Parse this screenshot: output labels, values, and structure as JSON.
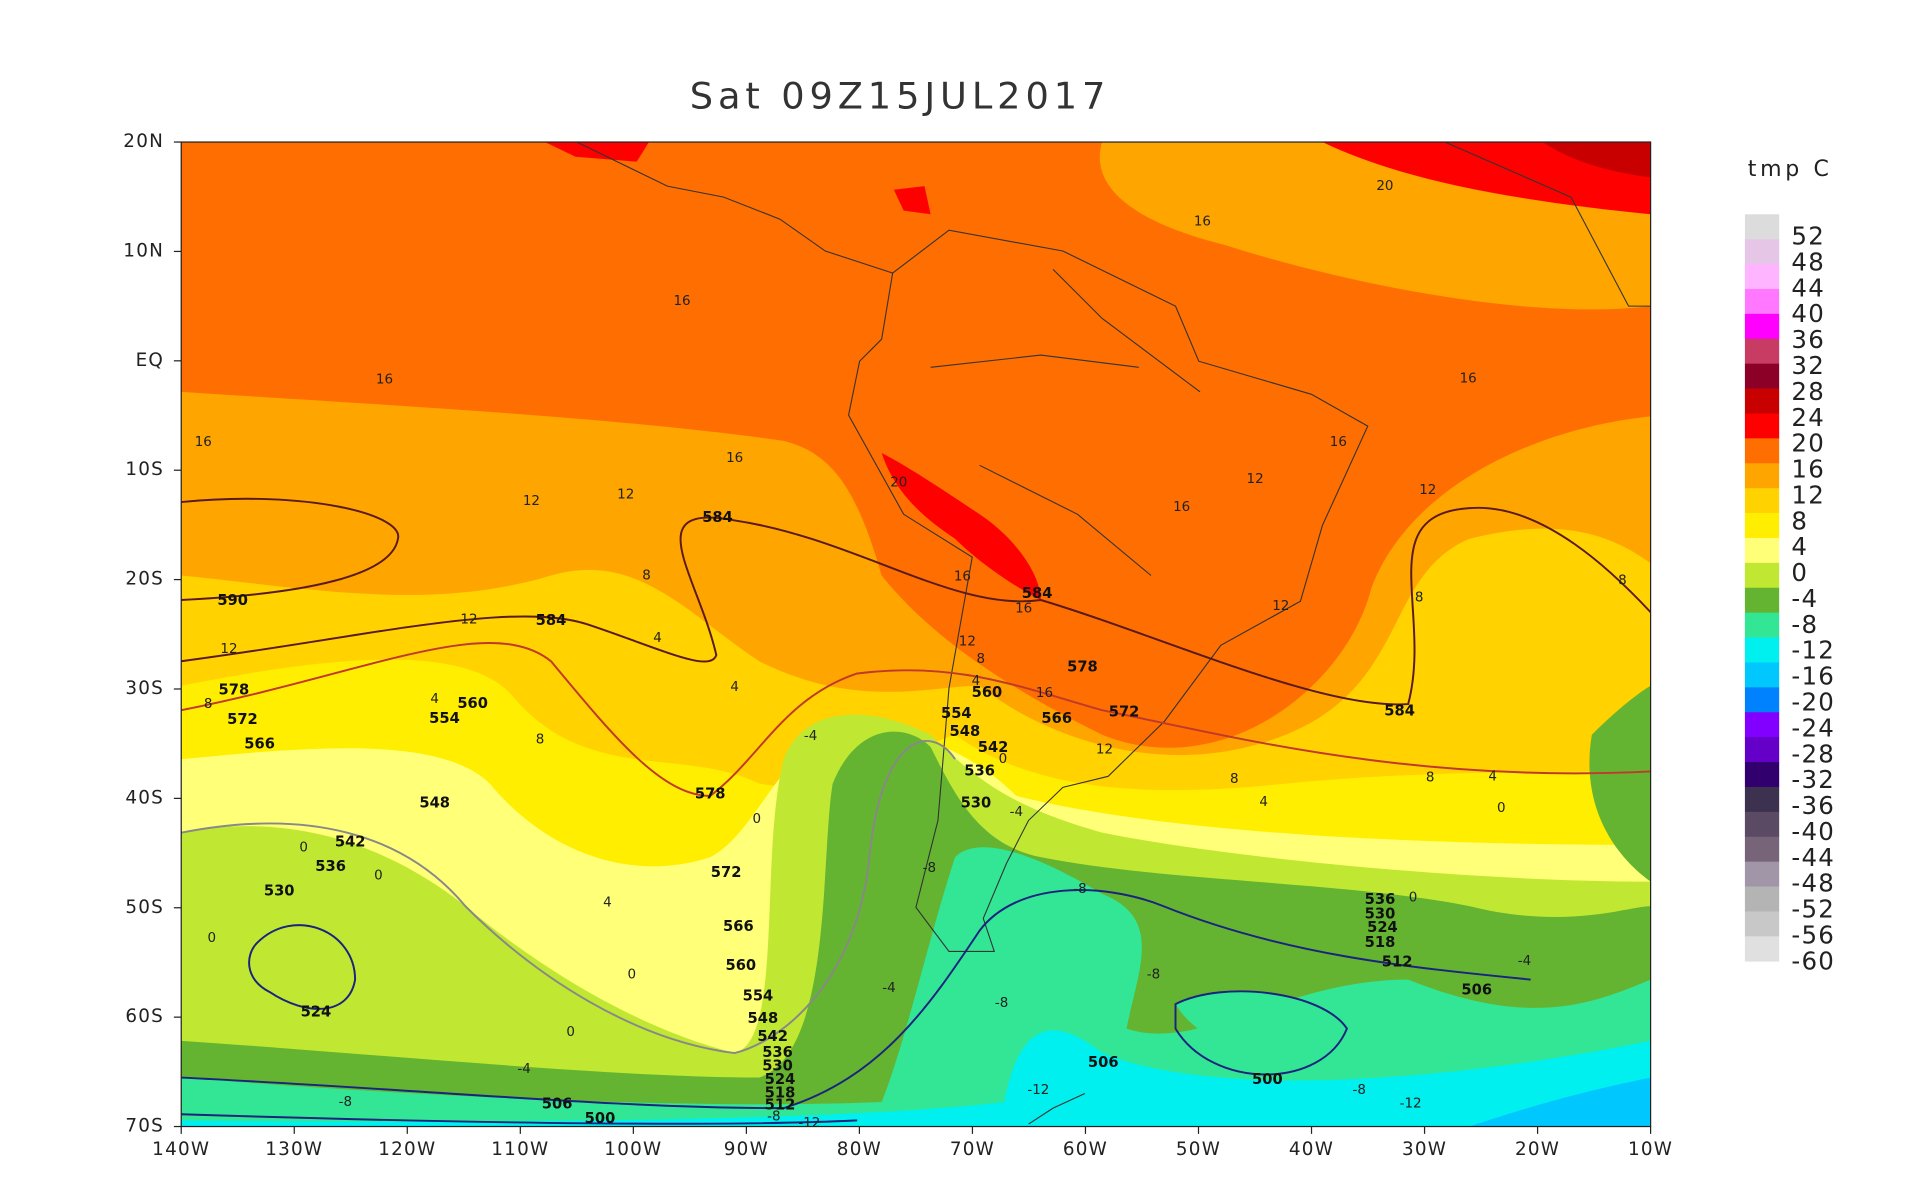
{
  "title": "Sat 09Z15JUL2017",
  "lat_labels": [
    "20N",
    "10N",
    "EQ",
    "10S",
    "20S",
    "30S",
    "40S",
    "50S",
    "60S",
    "70S"
  ],
  "lon_labels": [
    "140W",
    "130W",
    "120W",
    "110W",
    "100W",
    "90W",
    "80W",
    "70W",
    "60W",
    "50W",
    "40W",
    "30W",
    "20W",
    "10W"
  ],
  "colorbar": {
    "title": "tmp C",
    "labels": [
      52,
      48,
      44,
      40,
      36,
      32,
      28,
      24,
      20,
      16,
      12,
      8,
      4,
      0,
      -4,
      -8,
      -12,
      -16,
      -20,
      -24,
      -28,
      -32,
      -36,
      -40,
      -44,
      -48,
      -52,
      -56,
      -60
    ],
    "colors": [
      "#dcdcdc",
      "#e6c6e6",
      "#ffb4ff",
      "#ff78ff",
      "#ff00ff",
      "#c83c64",
      "#8c0028",
      "#c80000",
      "#ff0000",
      "#ff6e00",
      "#ffa500",
      "#ffd200",
      "#ffee00",
      "#ffff78",
      "#c0e832",
      "#64b432",
      "#32e696",
      "#00f0f0",
      "#00c8ff",
      "#0082ff",
      "#8200ff",
      "#6400c8",
      "#32006e",
      "#3c3250",
      "#5a4a64",
      "#786478",
      "#a096a8",
      "#b4b4b4",
      "#c8c8c8",
      "#e0e0e0"
    ]
  },
  "height_labels": [
    590,
    584,
    584,
    584,
    584,
    578,
    572,
    566,
    560,
    554,
    548,
    542,
    536,
    530,
    524,
    578,
    572,
    566,
    560,
    554,
    548,
    542,
    536,
    530,
    524,
    518,
    512,
    506,
    500,
    578,
    572,
    566,
    560,
    554,
    548,
    542,
    536,
    530,
    536,
    530,
    524,
    518,
    512,
    506,
    500,
    506
  ],
  "temperature_labels": [
    16,
    16,
    16,
    16,
    16,
    20,
    16,
    16,
    12,
    16,
    12,
    12,
    8,
    8,
    20,
    12,
    12,
    8,
    4,
    4,
    12,
    12,
    8,
    4,
    8,
    0,
    -4,
    16,
    16,
    12,
    8,
    4,
    16,
    12,
    0,
    8,
    4,
    8,
    4,
    0,
    -4,
    0,
    0,
    0,
    4,
    0,
    0,
    -4,
    -8,
    -8,
    -8,
    -8,
    -4,
    -8,
    0,
    -4,
    -8,
    -12,
    -12,
    -8,
    -12
  ]
}
